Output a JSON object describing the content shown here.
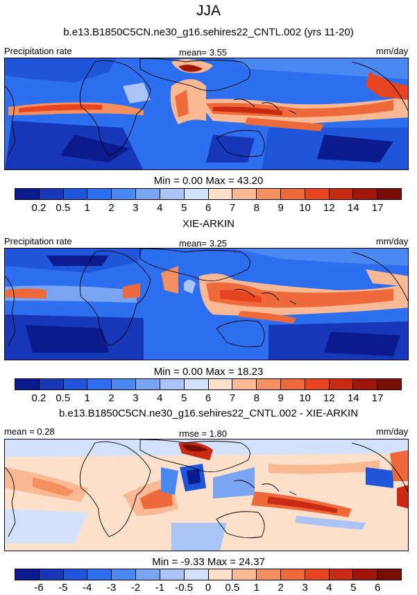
{
  "title": "JJA",
  "panels": [
    {
      "title": "b.e13.B1850C5CN.ne30_g16.sehires22_CNTL.002 (yrs 11-20)",
      "left_label": "Precipitation rate",
      "center_label": "mean=   3.55",
      "right_label": "mm/day",
      "minmax": "Min =   0.00 Max =  43.20",
      "colorbar": {
        "colors": [
          "#0b1a8c",
          "#1537b8",
          "#1f55d9",
          "#2e6ef0",
          "#4a88f2",
          "#7aa5f3",
          "#a9c4f5",
          "#d3e2fa",
          "#fde0cc",
          "#f9b994",
          "#f4905f",
          "#ee6a3a",
          "#e6451f",
          "#c92a12",
          "#a0160a",
          "#7a0d05"
        ],
        "ticks": [
          "0.2",
          "0.5",
          "1",
          "2",
          "3",
          "4",
          "5",
          "6",
          "7",
          "8",
          "9",
          "10",
          "12",
          "14",
          "17"
        ]
      }
    },
    {
      "title": "XIE-ARKIN",
      "left_label": "Precipitation rate",
      "center_label": "mean=   3.25",
      "right_label": "mm/day",
      "minmax": "Min =   0.00 Max =  18.23",
      "colorbar": {
        "colors": [
          "#0b1a8c",
          "#1537b8",
          "#1f55d9",
          "#2e6ef0",
          "#4a88f2",
          "#7aa5f3",
          "#a9c4f5",
          "#d3e2fa",
          "#fde0cc",
          "#f9b994",
          "#f4905f",
          "#ee6a3a",
          "#e6451f",
          "#c92a12",
          "#a0160a",
          "#7a0d05"
        ],
        "ticks": [
          "0.2",
          "0.5",
          "1",
          "2",
          "3",
          "4",
          "5",
          "6",
          "7",
          "8",
          "9",
          "10",
          "12",
          "14",
          "17"
        ]
      }
    },
    {
      "title": "b.e13.B1850C5CN.ne30_g16.sehires22_CNTL.002 - XIE-ARKIN",
      "left_label": "mean =   0.28",
      "center_label": "rmse =   1.80",
      "right_label": "mm/day",
      "minmax": "Min =  -9.33 Max =  24.37",
      "colorbar": {
        "colors": [
          "#0b1a8c",
          "#1537b8",
          "#1f55d9",
          "#2e6ef0",
          "#4a88f2",
          "#7aa5f3",
          "#a9c4f5",
          "#d3e2fa",
          "#fde0cc",
          "#f9b994",
          "#f4905f",
          "#ee6a3a",
          "#e6451f",
          "#c92a12",
          "#a0160a",
          "#7a0d05"
        ],
        "ticks": [
          "-6",
          "-5",
          "-4",
          "-3",
          "-2",
          "-1",
          "-0.5",
          "0",
          "0.5",
          "1",
          "2",
          "3",
          "4",
          "5",
          "6"
        ]
      }
    }
  ]
}
